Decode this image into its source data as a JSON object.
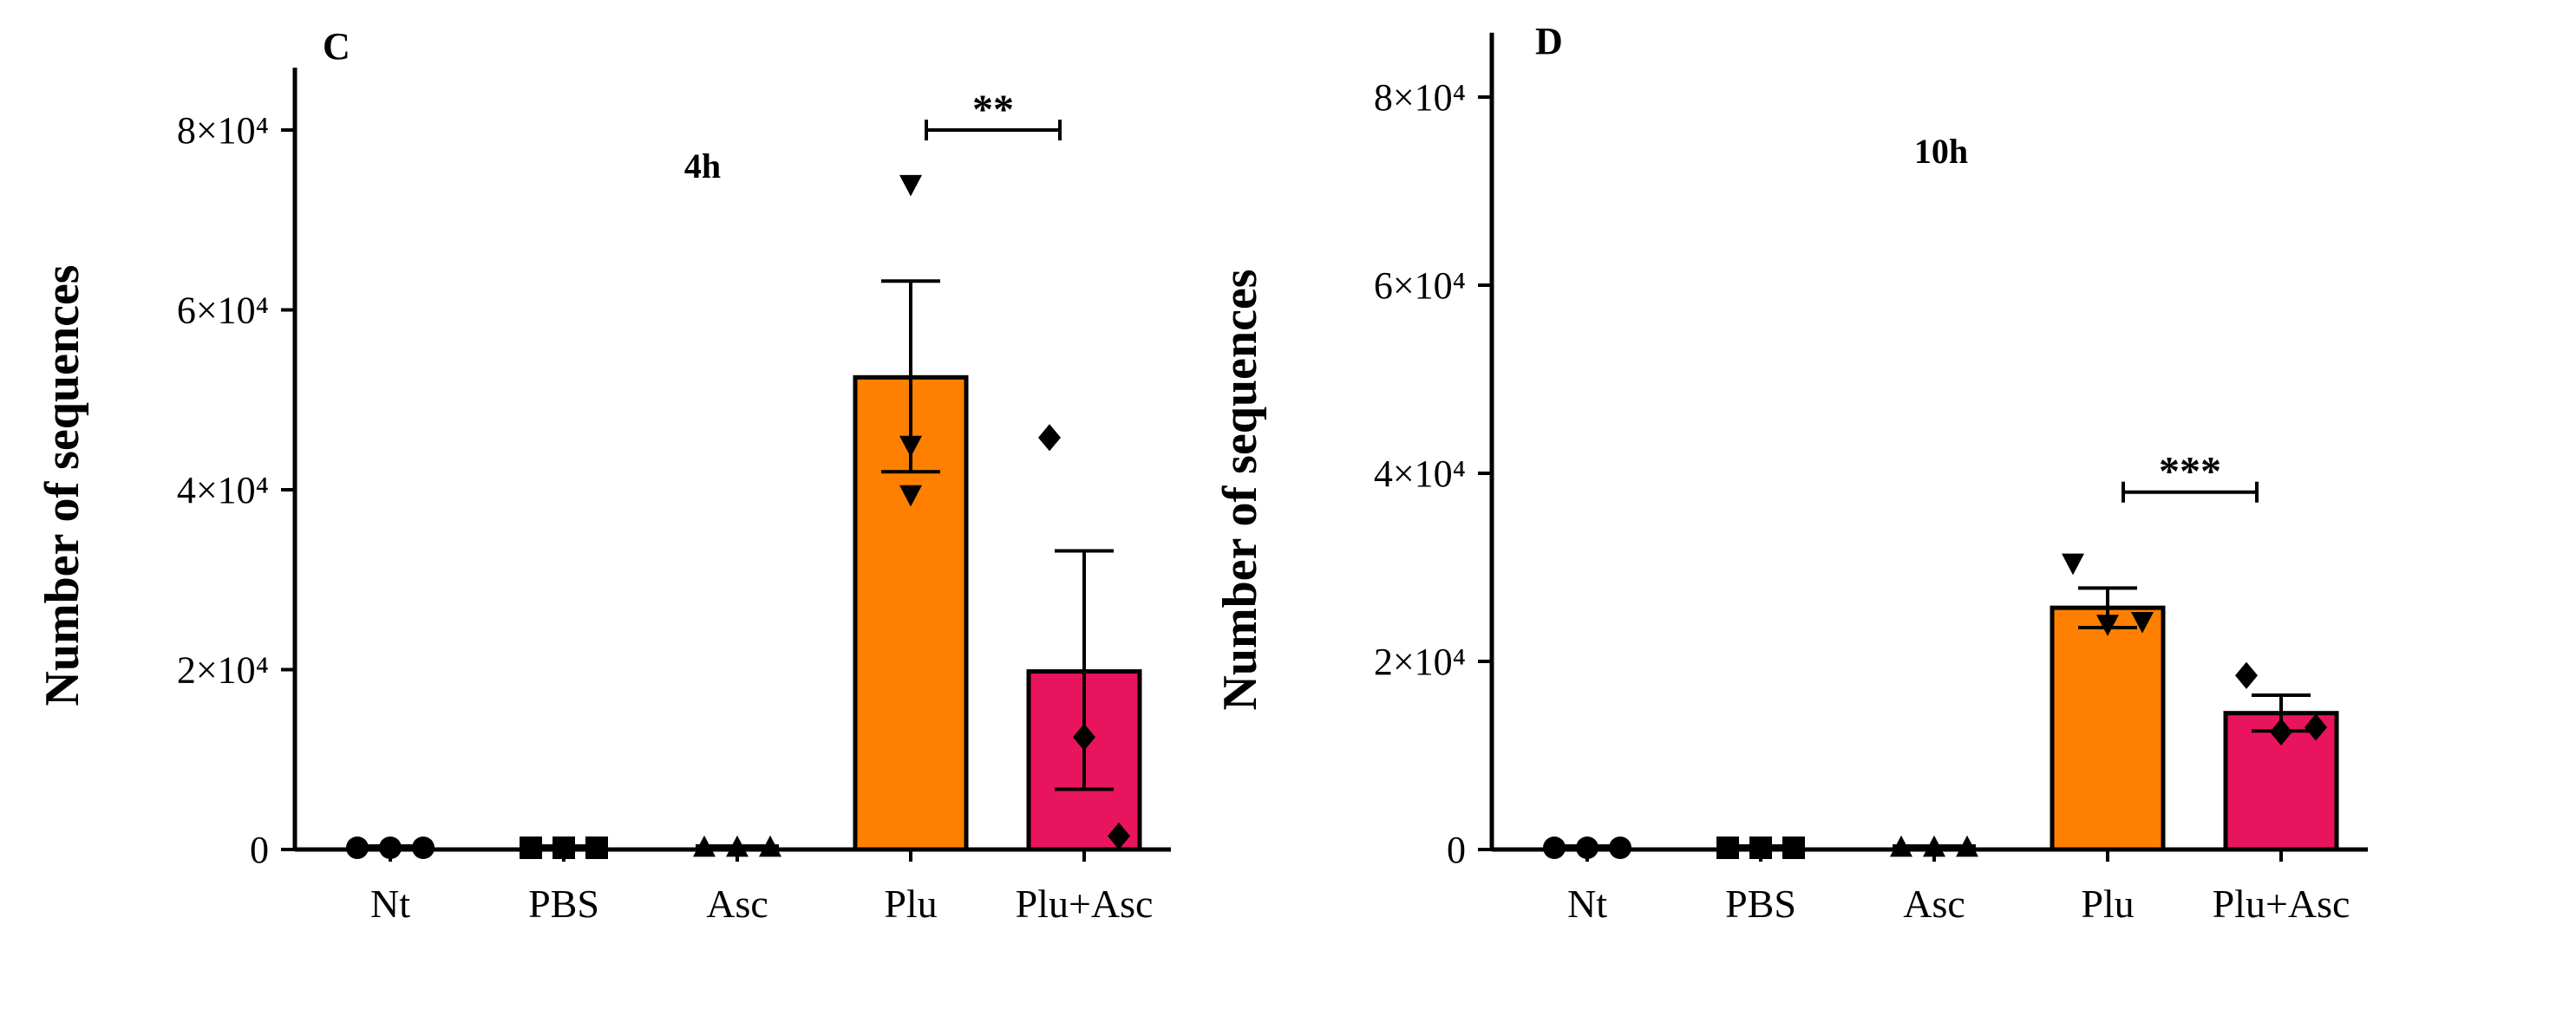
{
  "chart_data": [
    {
      "type": "bar",
      "panel_label": "C",
      "timepoint": "4h",
      "ylabel": "Number of sequences",
      "xlabel": "",
      "ylim": [
        0,
        85000
      ],
      "ytick_values": [
        0,
        20000,
        40000,
        60000,
        80000
      ],
      "ytick_labels": [
        "0",
        "2×10⁴",
        "4×10⁴",
        "6×10⁴",
        "8×10⁴"
      ],
      "categories": [
        "Nt",
        "PBS",
        "Asc",
        "Plu",
        "Plu+Asc"
      ],
      "values": [
        0,
        0,
        0,
        52500,
        19800
      ],
      "error_upper": [
        0,
        0,
        0,
        63200,
        33200
      ],
      "error_lower": [
        0,
        0,
        0,
        42000,
        6700
      ],
      "colors": [
        "#ffffff",
        "#ffffff",
        "#ffffff",
        "#ff8000",
        "#e8145e"
      ],
      "marker_shapes": [
        "circle",
        "square",
        "triangle-up",
        "triangle-down",
        "diamond"
      ],
      "points": [
        [
          0,
          0,
          0
        ],
        [
          0,
          0,
          0
        ],
        [
          0,
          0,
          0
        ],
        [
          74000,
          45000,
          39500
        ],
        [
          45800,
          12500,
          1500
        ]
      ],
      "significance": {
        "from": "Plu",
        "to": "Plu+Asc",
        "label": "**",
        "y": 80000
      }
    },
    {
      "type": "bar",
      "panel_label": "D",
      "timepoint": "10h",
      "ylabel": "Number of sequences",
      "xlabel": "",
      "ylim": [
        0,
        85000
      ],
      "ytick_values": [
        0,
        20000,
        40000,
        60000,
        80000
      ],
      "ytick_labels": [
        "0",
        "2×10⁴",
        "4×10⁴",
        "6×10⁴",
        "8×10⁴"
      ],
      "categories": [
        "Nt",
        "PBS",
        "Asc",
        "Plu",
        "Plu+Asc"
      ],
      "values": [
        0,
        0,
        0,
        25700,
        14500
      ],
      "error_upper": [
        0,
        0,
        0,
        27800,
        16400
      ],
      "error_lower": [
        0,
        0,
        0,
        23600,
        12600
      ],
      "colors": [
        "#ffffff",
        "#ffffff",
        "#ffffff",
        "#ff8000",
        "#e8145e"
      ],
      "marker_shapes": [
        "circle",
        "square",
        "triangle-up",
        "triangle-down",
        "diamond"
      ],
      "points": [
        [
          0,
          0,
          0
        ],
        [
          0,
          0,
          0
        ],
        [
          0,
          0,
          0
        ],
        [
          30500,
          24000,
          24300
        ],
        [
          18500,
          12500,
          13000
        ]
      ],
      "significance": {
        "from": "Plu",
        "to": "Plu+Asc",
        "label": "***",
        "y": 38000
      }
    }
  ]
}
